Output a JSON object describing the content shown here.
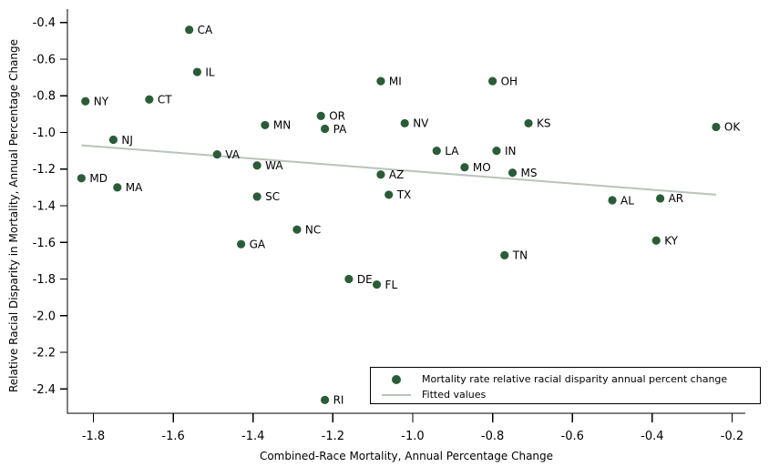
{
  "chart_data": {
    "type": "scatter",
    "title": "",
    "xlabel": "Combined-Race Mortality, Annual Percentage Change",
    "ylabel": "Relative Racial Disparity in Mortality, Annual Percentage Change",
    "xlim": [
      -1.865,
      -0.12
    ],
    "ylim": [
      -2.53,
      -0.33
    ],
    "x_ticks": [
      -1.8,
      -1.6,
      -1.4,
      -1.2,
      -1.0,
      -0.8,
      -0.6,
      -0.4,
      -0.2
    ],
    "y_ticks": [
      -0.4,
      -0.6,
      -0.8,
      -1.0,
      -1.2,
      -1.4,
      -1.6,
      -1.8,
      -2.0,
      -2.2,
      -2.4
    ],
    "grid": false,
    "points": [
      {
        "label": "MD",
        "x": -1.83,
        "y": -1.25
      },
      {
        "label": "NY",
        "x": -1.82,
        "y": -0.83
      },
      {
        "label": "NJ",
        "x": -1.75,
        "y": -1.04
      },
      {
        "label": "MA",
        "x": -1.74,
        "y": -1.3
      },
      {
        "label": "CT",
        "x": -1.66,
        "y": -0.82
      },
      {
        "label": "CA",
        "x": -1.56,
        "y": -0.44
      },
      {
        "label": "IL",
        "x": -1.54,
        "y": -0.67
      },
      {
        "label": "VA",
        "x": -1.49,
        "y": -1.12
      },
      {
        "label": "GA",
        "x": -1.43,
        "y": -1.61
      },
      {
        "label": "WA",
        "x": -1.39,
        "y": -1.18
      },
      {
        "label": "SC",
        "x": -1.39,
        "y": -1.35
      },
      {
        "label": "MN",
        "x": -1.37,
        "y": -0.96
      },
      {
        "label": "NC",
        "x": -1.29,
        "y": -1.53
      },
      {
        "label": "OR",
        "x": -1.23,
        "y": -0.91
      },
      {
        "label": "PA",
        "x": -1.22,
        "y": -0.98
      },
      {
        "label": "RI",
        "x": -1.22,
        "y": -2.46
      },
      {
        "label": "DE",
        "x": -1.16,
        "y": -1.8
      },
      {
        "label": "FL",
        "x": -1.09,
        "y": -1.83
      },
      {
        "label": "MI",
        "x": -1.08,
        "y": -0.72
      },
      {
        "label": "AZ",
        "x": -1.08,
        "y": -1.23
      },
      {
        "label": "TX",
        "x": -1.06,
        "y": -1.34
      },
      {
        "label": "NV",
        "x": -1.02,
        "y": -0.95
      },
      {
        "label": "LA",
        "x": -0.94,
        "y": -1.1
      },
      {
        "label": "MO",
        "x": -0.87,
        "y": -1.19
      },
      {
        "label": "OH",
        "x": -0.8,
        "y": -0.72
      },
      {
        "label": "IN",
        "x": -0.79,
        "y": -1.1
      },
      {
        "label": "TN",
        "x": -0.77,
        "y": -1.67
      },
      {
        "label": "MS",
        "x": -0.75,
        "y": -1.22
      },
      {
        "label": "KS",
        "x": -0.71,
        "y": -0.95
      },
      {
        "label": "AL",
        "x": -0.5,
        "y": -1.37
      },
      {
        "label": "KY",
        "x": -0.39,
        "y": -1.59
      },
      {
        "label": "AR",
        "x": -0.38,
        "y": -1.36
      },
      {
        "label": "OK",
        "x": -0.24,
        "y": -0.97
      }
    ],
    "fitted_line": {
      "x1": -1.83,
      "y1": -1.07,
      "x2": -0.24,
      "y2": -1.34
    },
    "legend": {
      "position": "inside-bottom-right",
      "entries": [
        {
          "type": "marker",
          "label": "Mortality rate relative racial disparity annual percent change"
        },
        {
          "type": "line",
          "label": "Fitted values"
        }
      ]
    },
    "colors": {
      "marker": "#2b5c38",
      "fitted_line": "#b9c4ba",
      "axis": "#000000",
      "text": "#000000",
      "background": "#ffffff"
    }
  }
}
